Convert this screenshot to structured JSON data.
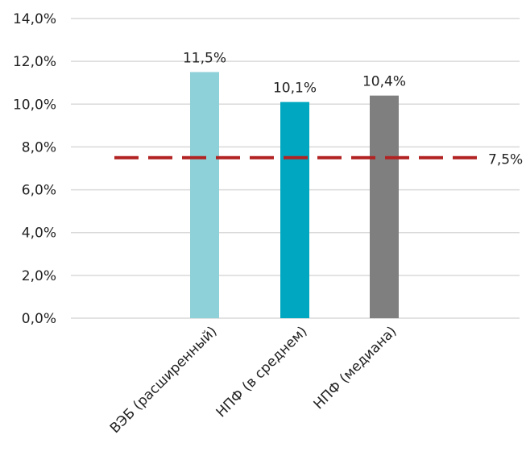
{
  "chart_data": {
    "type": "bar",
    "categories": [
      "ВЭБ (расширенный)",
      "НПФ (в среднем)",
      "НПФ (медиана)"
    ],
    "values": [
      11.5,
      10.1,
      10.4
    ],
    "data_labels": [
      "11,5%",
      "10,1%",
      "10,4%"
    ],
    "bar_colors": [
      "#8fd1d8",
      "#00a7c0",
      "#7f7f7f"
    ],
    "ylim": [
      0,
      14
    ],
    "y_ticks": [
      0,
      2,
      4,
      6,
      8,
      10,
      12,
      14
    ],
    "y_tick_labels": [
      "0,0%",
      "2,0%",
      "4,0%",
      "6,0%",
      "8,0%",
      "10,0%",
      "12,0%",
      "14,0%"
    ],
    "grid": true,
    "legend": "none",
    "reference_line": {
      "value": 7.5,
      "label": "7,5%",
      "color": "#b22222",
      "style": "dashed"
    }
  }
}
